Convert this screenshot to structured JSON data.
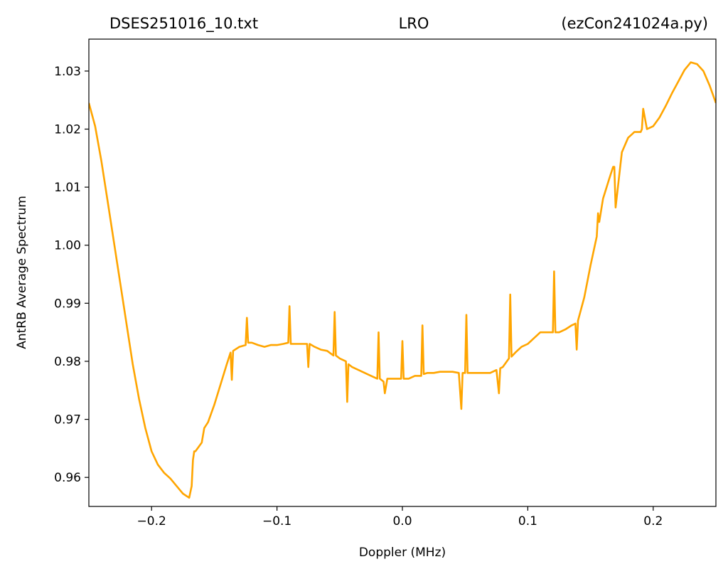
{
  "chart_data": {
    "type": "line",
    "title_parts": {
      "left": "DSES251016_10.txt",
      "center": "LRO",
      "right": "(ezCon241024a.py)"
    },
    "xlabel": "Doppler (MHz)",
    "ylabel": "AntRB Average Spectrum",
    "xlim": [
      -0.25,
      0.25
    ],
    "ylim": [
      0.955,
      1.0355
    ],
    "x_ticks": [
      -0.2,
      -0.1,
      0.0,
      0.1,
      0.2
    ],
    "x_tick_labels": [
      "−0.2",
      "−0.1",
      "0.0",
      "0.1",
      "0.2"
    ],
    "y_ticks": [
      0.96,
      0.97,
      0.98,
      0.99,
      1.0,
      1.01,
      1.02,
      1.03
    ],
    "y_tick_labels": [
      "0.96",
      "0.97",
      "0.98",
      "0.99",
      "1.00",
      "1.01",
      "1.02",
      "1.03"
    ],
    "grid": false,
    "series": [
      {
        "color": "#FFA500",
        "x": [
          -0.25,
          -0.245,
          -0.24,
          -0.235,
          -0.23,
          -0.225,
          -0.22,
          -0.215,
          -0.21,
          -0.205,
          -0.2,
          -0.195,
          -0.19,
          -0.185,
          -0.18,
          -0.175,
          -0.17,
          -0.168,
          -0.167,
          -0.166,
          -0.165,
          -0.16,
          -0.158,
          -0.155,
          -0.15,
          -0.145,
          -0.14,
          -0.137,
          -0.136,
          -0.135,
          -0.13,
          -0.125,
          -0.124,
          -0.123,
          -0.12,
          -0.115,
          -0.11,
          -0.105,
          -0.1,
          -0.095,
          -0.091,
          -0.09,
          -0.089,
          -0.085,
          -0.08,
          -0.076,
          -0.075,
          -0.074,
          -0.07,
          -0.065,
          -0.06,
          -0.055,
          -0.054,
          -0.053,
          -0.05,
          -0.045,
          -0.044,
          -0.043,
          -0.04,
          -0.035,
          -0.03,
          -0.025,
          -0.02,
          -0.019,
          -0.018,
          -0.015,
          -0.014,
          -0.012,
          -0.01,
          -0.005,
          -0.001,
          0.0,
          0.001,
          0.005,
          0.01,
          0.015,
          0.016,
          0.017,
          0.02,
          0.025,
          0.03,
          0.035,
          0.04,
          0.045,
          0.047,
          0.048,
          0.05,
          0.051,
          0.052,
          0.055,
          0.06,
          0.065,
          0.07,
          0.075,
          0.077,
          0.078,
          0.08,
          0.085,
          0.086,
          0.087,
          0.09,
          0.095,
          0.1,
          0.105,
          0.11,
          0.115,
          0.12,
          0.121,
          0.122,
          0.125,
          0.13,
          0.135,
          0.138,
          0.139,
          0.14,
          0.145,
          0.15,
          0.155,
          0.156,
          0.157,
          0.16,
          0.165,
          0.168,
          0.169,
          0.17,
          0.175,
          0.18,
          0.185,
          0.19,
          0.191,
          0.192,
          0.195,
          0.2,
          0.205,
          0.21,
          0.215,
          0.22,
          0.225,
          0.23,
          0.235,
          0.24,
          0.245,
          0.25
        ],
        "y": [
          1.0245,
          1.0205,
          1.0145,
          1.0075,
          1.0005,
          0.9935,
          0.9865,
          0.9795,
          0.9735,
          0.9685,
          0.9645,
          0.9622,
          0.9608,
          0.9598,
          0.9585,
          0.9572,
          0.9565,
          0.9585,
          0.963,
          0.9645,
          0.9645,
          0.966,
          0.9685,
          0.9695,
          0.9725,
          0.976,
          0.9795,
          0.9815,
          0.9768,
          0.9818,
          0.9825,
          0.9828,
          0.9875,
          0.9832,
          0.9832,
          0.9828,
          0.9825,
          0.9828,
          0.9828,
          0.983,
          0.9832,
          0.9895,
          0.983,
          0.983,
          0.983,
          0.983,
          0.979,
          0.983,
          0.9825,
          0.982,
          0.9818,
          0.981,
          0.9885,
          0.981,
          0.9805,
          0.98,
          0.973,
          0.9795,
          0.979,
          0.9785,
          0.978,
          0.9775,
          0.977,
          0.985,
          0.977,
          0.9765,
          0.9745,
          0.977,
          0.977,
          0.977,
          0.977,
          0.9835,
          0.977,
          0.977,
          0.9775,
          0.9775,
          0.9862,
          0.9778,
          0.978,
          0.978,
          0.9782,
          0.9782,
          0.9782,
          0.978,
          0.9718,
          0.978,
          0.978,
          0.988,
          0.978,
          0.978,
          0.978,
          0.978,
          0.978,
          0.9785,
          0.9745,
          0.9788,
          0.979,
          0.9805,
          0.9915,
          0.9808,
          0.9815,
          0.9825,
          0.983,
          0.984,
          0.985,
          0.985,
          0.985,
          0.9955,
          0.985,
          0.985,
          0.9855,
          0.9862,
          0.9865,
          0.982,
          0.987,
          0.991,
          0.9965,
          1.0015,
          1.0055,
          1.004,
          1.008,
          1.0115,
          1.0135,
          1.0135,
          1.0065,
          1.016,
          1.0185,
          1.0195,
          1.0195,
          1.02,
          1.0235,
          1.02,
          1.0205,
          1.022,
          1.024,
          1.0262,
          1.0282,
          1.0302,
          1.0315,
          1.0312,
          1.03,
          1.0275,
          1.0245
        ]
      }
    ]
  }
}
